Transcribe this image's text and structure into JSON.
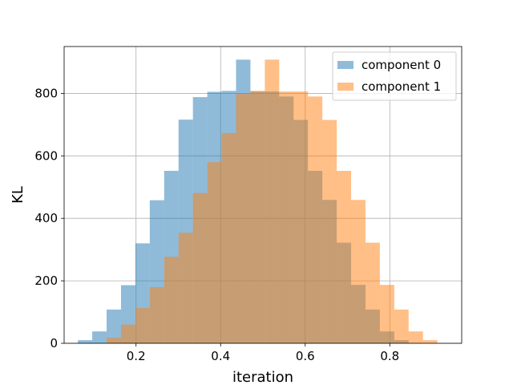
{
  "chart_data": {
    "type": "histogram",
    "xlabel": "iteration",
    "ylabel": "KL",
    "xlim": [
      0.03,
      0.97
    ],
    "ylim": [
      0,
      950
    ],
    "xticks": [
      0.2,
      0.4,
      0.6,
      0.8
    ],
    "xtick_labels": [
      "0.2",
      "0.4",
      "0.6",
      "0.8"
    ],
    "yticks": [
      0,
      200,
      400,
      600,
      800
    ],
    "ytick_labels": [
      "0",
      "200",
      "400",
      "600",
      "800"
    ],
    "grid": true,
    "legend_position": "top-right",
    "bin_width": 0.034,
    "series": [
      {
        "name": "component 0",
        "color": "#1f77b4",
        "alpha": 0.5,
        "bin_start": 0.0625,
        "counts": [
          10,
          38,
          108,
          186,
          320,
          458,
          552,
          716,
          788,
          805,
          808,
          908,
          806,
          806,
          790,
          715,
          552,
          459,
          322,
          187,
          108,
          38,
          10
        ]
      },
      {
        "name": "component 1",
        "color": "#ff7f0e",
        "alpha": 0.5,
        "bin_start": 0.1305,
        "counts": [
          18,
          60,
          113,
          180,
          277,
          354,
          481,
          580,
          673,
          798,
          808,
          908,
          806,
          806,
          790,
          715,
          552,
          459,
          322,
          187,
          108,
          38,
          10
        ]
      }
    ]
  }
}
